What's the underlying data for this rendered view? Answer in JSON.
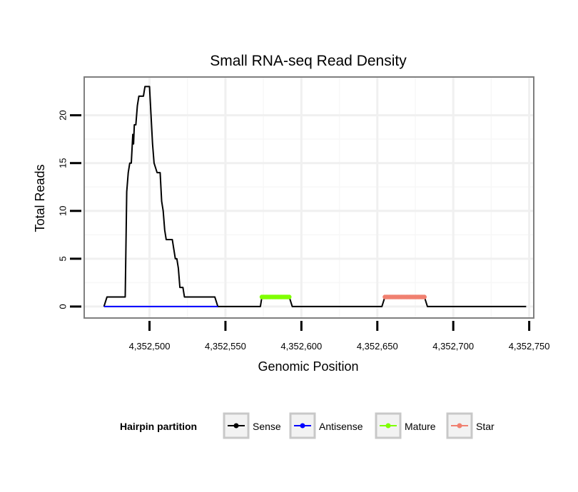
{
  "chart_data": {
    "type": "line",
    "title": "Small RNA-seq Read Density",
    "xlabel": "Genomic Position",
    "ylabel": "Total Reads",
    "xlim": [
      4352457,
      4352753
    ],
    "ylim": [
      -1.2,
      24
    ],
    "grid": true,
    "x_ticks": [
      {
        "value": 4352500,
        "label": "4,352,500"
      },
      {
        "value": 4352550,
        "label": "4,352,550"
      },
      {
        "value": 4352600,
        "label": "4,352,600"
      },
      {
        "value": 4352650,
        "label": "4,352,650"
      },
      {
        "value": 4352700,
        "label": "4,352,700"
      },
      {
        "value": 4352750,
        "label": "4,352,750"
      }
    ],
    "y_ticks": [
      {
        "value": 0,
        "label": "0"
      },
      {
        "value": 5,
        "label": "5"
      },
      {
        "value": 10,
        "label": "10"
      },
      {
        "value": 15,
        "label": "15"
      },
      {
        "value": 20,
        "label": "20"
      }
    ],
    "legend": {
      "title": "Hairpin partition",
      "position": "bottom",
      "entries": [
        {
          "name": "Sense",
          "color": "#000000"
        },
        {
          "name": "Antisense",
          "color": "#0000ff"
        },
        {
          "name": "Mature",
          "color": "#7fff00"
        },
        {
          "name": "Star",
          "color": "#f08070"
        }
      ]
    },
    "series": [
      {
        "name": "Sense",
        "color": "#000000",
        "x": [
          4352470,
          4352472,
          4352484,
          4352485,
          4352486,
          4352487,
          4352488,
          4352489,
          4352489.5,
          4352490,
          4352491,
          4352492,
          4352493,
          4352496,
          4352497,
          4352500,
          4352501,
          4352502,
          4352503,
          4352505,
          4352507,
          4352508,
          4352509,
          4352510,
          4352511,
          4352512,
          4352515,
          4352516,
          4352517,
          4352518,
          4352519,
          4352520,
          4352522,
          4352523,
          4352525,
          4352543,
          4352545,
          4352573,
          4352574,
          4352592,
          4352594,
          4352653,
          4352655,
          4352681,
          4352683,
          4352748
        ],
        "values": [
          0,
          1,
          1,
          12,
          14,
          15,
          15,
          18,
          17,
          19,
          19,
          21,
          22,
          22,
          23,
          23,
          20,
          17,
          15,
          14,
          14,
          11,
          10,
          8,
          7,
          7,
          7,
          6,
          5,
          5,
          4,
          2,
          2,
          1,
          1,
          1,
          0,
          0,
          1,
          1,
          0,
          0,
          1,
          1,
          0,
          0
        ]
      },
      {
        "name": "Antisense",
        "color": "#0000ff",
        "x": [
          4352470,
          4352545
        ],
        "values": [
          0,
          0
        ]
      },
      {
        "name": "Mature",
        "color": "#7fff00",
        "x": [
          4352574,
          4352592
        ],
        "values": [
          1,
          1
        ]
      },
      {
        "name": "Star",
        "color": "#f08070",
        "x": [
          4352655,
          4352681
        ],
        "values": [
          1,
          1
        ]
      }
    ]
  }
}
